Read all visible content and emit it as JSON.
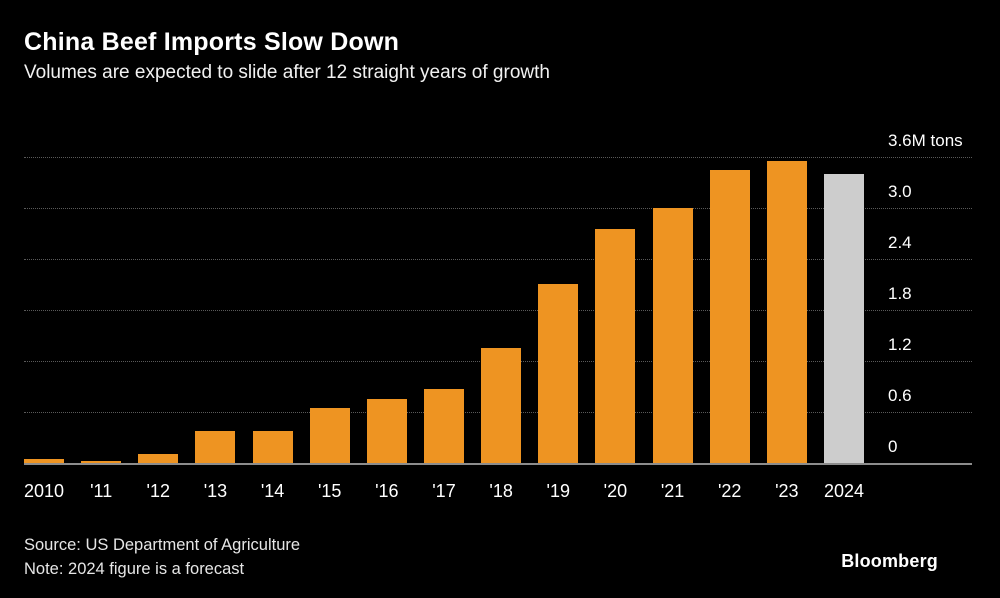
{
  "header": {
    "title": "China Beef Imports Slow Down",
    "subtitle": "Volumes are expected to slide after 12 straight years of growth"
  },
  "footer": {
    "source": "Source: US Department of Agriculture",
    "note": "Note: 2024 figure is a forecast",
    "brand": "Bloomberg"
  },
  "colors": {
    "background": "#000000",
    "bar": "#EE9422",
    "forecast_bar": "#CDCDCD",
    "grid": "#5a5a5a",
    "axis": "#8c8c8c",
    "text": "#ffffff"
  },
  "chart_data": {
    "type": "bar",
    "title": "China Beef Imports Slow Down",
    "subtitle": "Volumes are expected to slide after 12 straight years of growth",
    "unit": "M tons",
    "categories": [
      "2010",
      "'11",
      "'12",
      "'13",
      "'14",
      "'15",
      "'16",
      "'17",
      "'18",
      "'19",
      "'20",
      "'21",
      "'22",
      "'23",
      "2024"
    ],
    "values": [
      0.05,
      0.02,
      0.1,
      0.38,
      0.38,
      0.65,
      0.75,
      0.87,
      1.35,
      2.1,
      2.75,
      3.0,
      3.45,
      3.55,
      3.4
    ],
    "forecast_indices": [
      14
    ],
    "ylim": [
      0,
      3.6
    ],
    "ytick_labels_top_to_bottom": [
      "3.6M tons",
      "3.0",
      "2.4",
      "1.8",
      "1.2",
      "0.6",
      "0"
    ],
    "grid": "dotted horizontal",
    "legend": "none",
    "ylabel_position": "right",
    "xlabel": "",
    "ylabel": ""
  }
}
